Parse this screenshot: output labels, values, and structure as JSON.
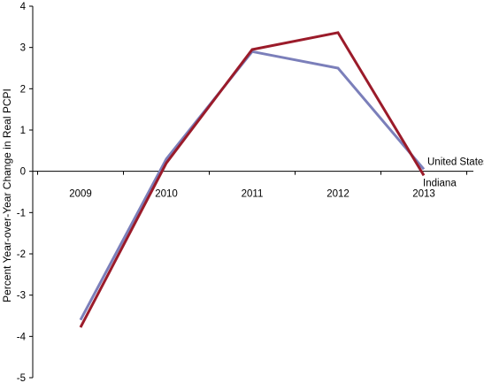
{
  "chart_data": {
    "type": "line",
    "title": "",
    "xlabel": "",
    "ylabel": "Percent Year-over-Year Change in Real PCPI",
    "categories": [
      "2009",
      "2010",
      "2011",
      "2012",
      "2013"
    ],
    "ylim": [
      -5,
      4
    ],
    "y_ticks": [
      "4",
      "3",
      "2",
      "1",
      "0",
      "-1",
      "-2",
      "-3",
      "-4",
      "-5"
    ],
    "grid": false,
    "legend": "inline labels at line ends",
    "series": [
      {
        "name": "United States",
        "color": "#7b7fba",
        "values": [
          -3.6,
          0.3,
          2.9,
          2.5,
          0.05
        ]
      },
      {
        "name": "Indiana",
        "color": "#9b1b2a",
        "values": [
          -3.78,
          0.2,
          2.95,
          3.36,
          -0.1
        ]
      }
    ]
  }
}
